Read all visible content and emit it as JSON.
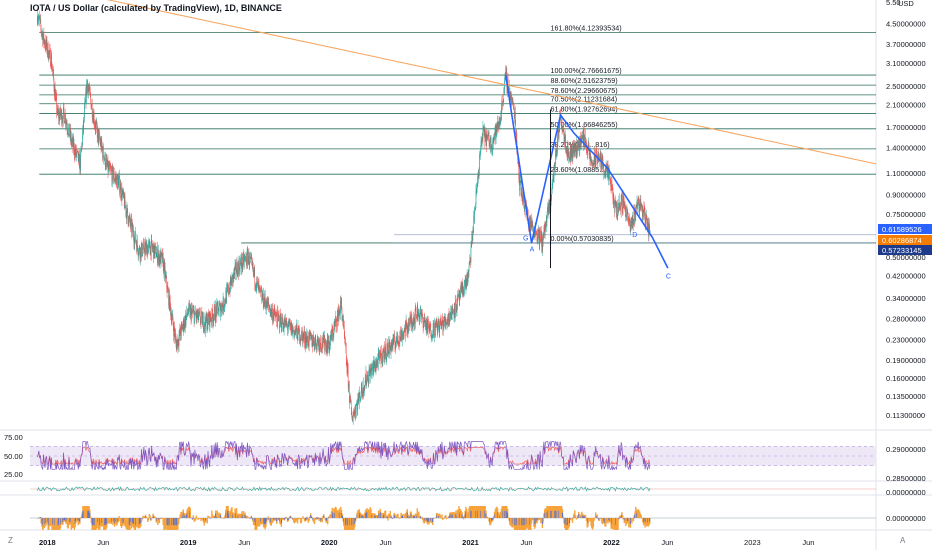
{
  "header": {
    "title": "IOTA / US Dollar (calculated by TradingView), 1D, BINANCE",
    "corner_left": "Z",
    "corner_right": "A"
  },
  "colors": {
    "up": "#26a69a",
    "down": "#ef5350",
    "fib": "#2b6f5e",
    "trend": "#f7a35c",
    "wave": "#2962ff",
    "rsi": "#7e57c2",
    "rsi_band": "#ede7f6",
    "tag_blue": "#2962ff",
    "tag_orange": "#f57c00",
    "tag_navy": "#1e3a8a"
  },
  "chart_data": {
    "type": "candlestick",
    "symbol": "IOTA / US Dollar",
    "interval": "1D",
    "exchange": "BINANCE",
    "y_scale": "log",
    "ylim": [
      0.1,
      5.5
    ],
    "xlim": [
      "2017-12-01",
      "2023-12-01"
    ],
    "y_unit_label": "USD",
    "x_tick_labels": [
      "2018",
      "Jun",
      "2019",
      "Jun",
      "2020",
      "Jun",
      "2021",
      "Jun",
      "2022",
      "Jun",
      "2023",
      "Jun"
    ],
    "x_tick_dates": [
      "2018-01-01",
      "2018-06-01",
      "2019-01-01",
      "2019-06-01",
      "2020-01-01",
      "2020-06-01",
      "2021-01-01",
      "2021-06-01",
      "2022-01-01",
      "2022-06-01",
      "2023-01-01",
      "2023-06-01"
    ],
    "y_ticks": [
      {
        "value": 5.5,
        "label": "5.50"
      },
      {
        "value": 4.5,
        "label": "4.50000000"
      },
      {
        "value": 3.7,
        "label": "3.70000000"
      },
      {
        "value": 3.1,
        "label": "3.10000000"
      },
      {
        "value": 2.5,
        "label": "2.50000000"
      },
      {
        "value": 2.1,
        "label": "2.10000000"
      },
      {
        "value": 1.7,
        "label": "1.70000000"
      },
      {
        "value": 1.4,
        "label": "1.40000000"
      },
      {
        "value": 1.1,
        "label": "1.10000000"
      },
      {
        "value": 0.9,
        "label": "0.90000000"
      },
      {
        "value": 0.75,
        "label": "0.75000000"
      },
      {
        "value": 0.5,
        "label": "0.50000000"
      },
      {
        "value": 0.42,
        "label": "0.42000000"
      },
      {
        "value": 0.34,
        "label": "0.34000000"
      },
      {
        "value": 0.28,
        "label": "0.28000000"
      },
      {
        "value": 0.23,
        "label": "0.23000000"
      },
      {
        "value": 0.19,
        "label": "0.19000000"
      },
      {
        "value": 0.16,
        "label": "0.16000000"
      },
      {
        "value": 0.135,
        "label": "0.13500000"
      },
      {
        "value": 0.113,
        "label": "0.11300000"
      }
    ],
    "price_path": [
      [
        "2017-12-20",
        4.9
      ],
      [
        "2018-01-05",
        3.9
      ],
      [
        "2018-01-25",
        3.2
      ],
      [
        "2018-02-10",
        1.9
      ],
      [
        "2018-03-01",
        1.9
      ],
      [
        "2018-03-20",
        1.45
      ],
      [
        "2018-04-10",
        1.2
      ],
      [
        "2018-04-28",
        2.6
      ],
      [
        "2018-05-20",
        1.7
      ],
      [
        "2018-06-20",
        1.15
      ],
      [
        "2018-07-20",
        1.0
      ],
      [
        "2018-08-15",
        0.7
      ],
      [
        "2018-09-10",
        0.53
      ],
      [
        "2018-10-10",
        0.55
      ],
      [
        "2018-11-10",
        0.48
      ],
      [
        "2018-12-01",
        0.3
      ],
      [
        "2018-12-15",
        0.22
      ],
      [
        "2019-01-15",
        0.3
      ],
      [
        "2019-03-01",
        0.27
      ],
      [
        "2019-04-15",
        0.32
      ],
      [
        "2019-05-20",
        0.45
      ],
      [
        "2019-06-20",
        0.5
      ],
      [
        "2019-07-20",
        0.35
      ],
      [
        "2019-09-01",
        0.28
      ],
      [
        "2019-10-15",
        0.25
      ],
      [
        "2019-11-20",
        0.23
      ],
      [
        "2020-01-15",
        0.22
      ],
      [
        "2020-02-15",
        0.32
      ],
      [
        "2020-03-13",
        0.11
      ],
      [
        "2020-04-20",
        0.16
      ],
      [
        "2020-06-01",
        0.2
      ],
      [
        "2020-07-20",
        0.24
      ],
      [
        "2020-09-01",
        0.3
      ],
      [
        "2020-10-01",
        0.25
      ],
      [
        "2020-11-10",
        0.27
      ],
      [
        "2020-12-10",
        0.32
      ],
      [
        "2021-01-10",
        0.42
      ],
      [
        "2021-02-05",
        1.15
      ],
      [
        "2021-02-15",
        1.6
      ],
      [
        "2021-03-10",
        1.45
      ],
      [
        "2021-04-01",
        1.8
      ],
      [
        "2021-04-16",
        2.75
      ],
      [
        "2021-05-10",
        1.9
      ],
      [
        "2021-05-22",
        1.0
      ],
      [
        "2021-06-15",
        0.7
      ],
      [
        "2021-07-20",
        0.58
      ],
      [
        "2021-08-10",
        0.85
      ],
      [
        "2021-09-05",
        1.9
      ],
      [
        "2021-09-25",
        1.3
      ],
      [
        "2021-10-15",
        1.4
      ],
      [
        "2021-11-05",
        1.55
      ],
      [
        "2021-11-25",
        1.2
      ],
      [
        "2021-12-10",
        1.3
      ],
      [
        "2022-01-10",
        1.05
      ],
      [
        "2022-01-25",
        0.78
      ],
      [
        "2022-02-15",
        0.85
      ],
      [
        "2022-03-05",
        0.65
      ],
      [
        "2022-03-25",
        0.85
      ],
      [
        "2022-04-10",
        0.75
      ],
      [
        "2022-04-25",
        0.62
      ]
    ],
    "fib_levels": [
      {
        "ratio": 0.0,
        "label": "0.00%(0.57030835)",
        "value": 0.57030835
      },
      {
        "ratio": 0.236,
        "label": "23.60%(1.0885....)",
        "value": 1.0885
      },
      {
        "ratio": 0.382,
        "label": "38.20%(1.3....816)",
        "value": 1.3816
      },
      {
        "ratio": 0.5,
        "label": "50.00%(1.66846255)",
        "value": 1.66846255
      },
      {
        "ratio": 0.618,
        "label": "61.80%(1.92762694)",
        "value": 1.92762694
      },
      {
        "ratio": 0.705,
        "label": "70.50%(2.11231684)",
        "value": 2.11231684
      },
      {
        "ratio": 0.786,
        "label": "78.60%(2.29660675)",
        "value": 2.29660675
      },
      {
        "ratio": 0.886,
        "label": "88.60%(2.51623759)",
        "value": 2.51623759
      },
      {
        "ratio": 1.0,
        "label": "100.00%(2.76661675)",
        "value": 2.76661675
      },
      {
        "ratio": 1.618,
        "label": "161.80%(4.12393534)",
        "value": 4.12393534
      }
    ],
    "horizontal_lines": [
      {
        "value": 0.61589526
      },
      {
        "value": 0.57233145
      }
    ],
    "trend_line": {
      "from": [
        "2017-12-15",
        6.5
      ],
      "to": [
        "2023-12-01",
        1.2
      ]
    },
    "wave_path": [
      [
        "2021-04-16",
        2.76
      ],
      [
        "2021-06-22",
        0.57
      ],
      [
        "2021-09-05",
        1.9
      ],
      [
        "2021-10-10",
        1.6
      ],
      [
        "2022-01-05",
        1.15
      ],
      [
        "2022-05-01",
        0.6
      ],
      [
        "2022-06-10",
        0.45
      ]
    ],
    "wave_labels": [
      {
        "text": "G",
        "date": "2021-06-05",
        "value": 0.6
      },
      {
        "text": "A",
        "date": "2021-06-22",
        "value": 0.54
      },
      {
        "text": "D",
        "date": "2022-03-15",
        "value": 0.62
      },
      {
        "text": "C",
        "date": "2022-06-10",
        "value": 0.42
      }
    ],
    "price_tags": [
      {
        "label": "0.61589526",
        "color": "#2962ff"
      },
      {
        "label": "0.60286874",
        "color": "#f57c00"
      },
      {
        "label": "0.57233145",
        "color": "#1e3a8a"
      }
    ],
    "rsi": {
      "ticks": [
        "75.00",
        "50.00",
        "25.00"
      ],
      "band": [
        30,
        70
      ],
      "right_labels": [
        "0.29000000",
        "0.28500000"
      ]
    },
    "indicator_1": {
      "right_label": "0.00000000"
    },
    "indicator_2": {
      "right_label": "0.00000000"
    }
  }
}
